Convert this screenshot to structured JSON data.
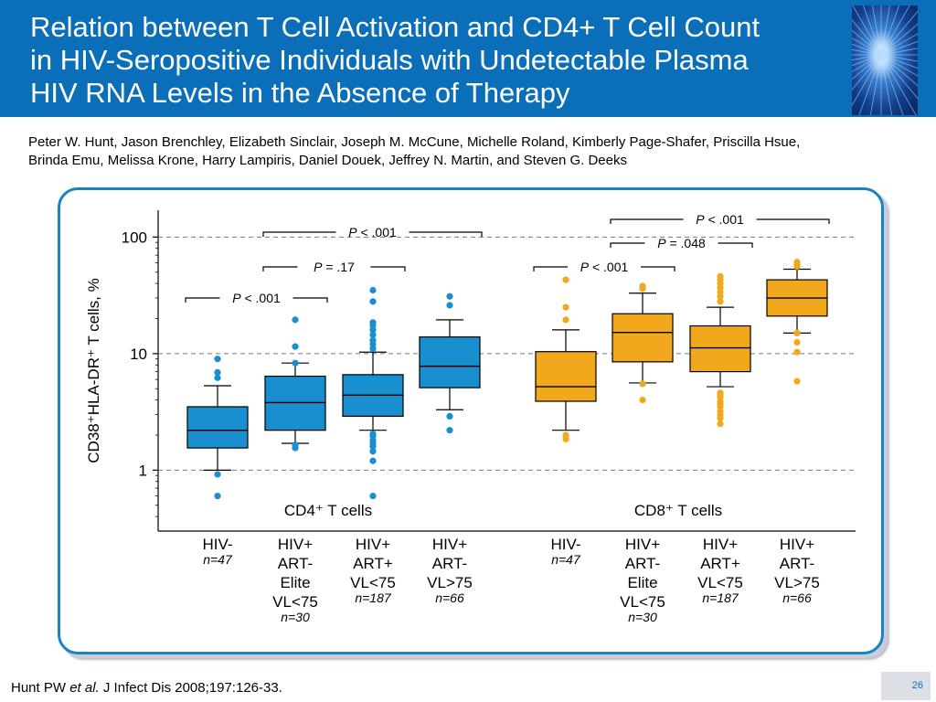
{
  "slide": {
    "title_lines": [
      "Relation between T Cell Activation and CD4+ T Cell Count",
      "in HIV-Seropositive Individuals with Undetectable Plasma",
      "HIV RNA Levels in the Absence of Therapy"
    ],
    "authors_lines": [
      "Peter W. Hunt, Jason Brenchley, Elizabeth Sinclair, Joseph M. McCune, Michelle Roland, Kimberly Page-Shafer, Priscilla Hsue,",
      "Brinda Emu, Melissa Krone, Harry Lampiris, Daniel Douek, Jeffrey N. Martin, and Steven G. Deeks"
    ],
    "citation": {
      "prefix": "Hunt PW ",
      "etal": "et al.",
      "rest": " J Infect Dis 2008;197:126-33."
    },
    "page_number": "26",
    "colors": {
      "header": "#0a6fb8",
      "cd4": "#1a8fcf",
      "cd8": "#f2a81d",
      "frame": "#1b82c6"
    }
  },
  "chart_data": {
    "type": "box",
    "scale": "log",
    "ylabel": "CD38⁺HLA-DR⁺ T cells, %",
    "ylim": [
      0.3,
      170
    ],
    "yticks": [
      1,
      10,
      100
    ],
    "ytick_labels": [
      "1",
      "10",
      "100"
    ],
    "gridlines": [
      1,
      10,
      100
    ],
    "panels": [
      {
        "label": "CD4⁺ T cells",
        "color": "#1a8fcf",
        "groups": [
          {
            "label_lines": [
              "HIV-"
            ],
            "n": "n=47",
            "q1": 1.55,
            "median": 2.2,
            "q3": 3.5,
            "whisker_low": 1.0,
            "whisker_high": 5.3,
            "outliers": [
              0.92,
              0.6,
              6.2,
              6.9,
              9.0
            ]
          },
          {
            "label_lines": [
              "HIV+",
              "ART-",
              "Elite",
              "VL<75"
            ],
            "n": "n=30",
            "q1": 2.2,
            "median": 3.8,
            "q3": 6.4,
            "whisker_low": 1.7,
            "whisker_high": 8.3,
            "outliers": [
              1.55,
              1.65,
              8.3,
              11.5,
              19.5
            ]
          },
          {
            "label_lines": [
              "HIV+",
              "ART+",
              "VL<75"
            ],
            "n": "n=187",
            "q1": 2.9,
            "median": 4.4,
            "q3": 6.6,
            "whisker_low": 2.2,
            "whisker_high": 10.3,
            "outliers": [
              0.6,
              1.2,
              1.45,
              1.6,
              1.7,
              1.8,
              1.95,
              2.05,
              11,
              12,
              13,
              14.5,
              16,
              17.5,
              18.5,
              28,
              35
            ]
          },
          {
            "label_lines": [
              "HIV+",
              "ART-",
              "VL>75"
            ],
            "n": "n=66",
            "q1": 5.1,
            "median": 7.8,
            "q3": 13.9,
            "whisker_low": 3.3,
            "whisker_high": 19.5,
            "outliers": [
              2.2,
              2.9,
              26,
              31
            ]
          }
        ],
        "annotations": [
          {
            "text": "P < .001",
            "from": 0,
            "to": 1
          },
          {
            "text": "P = .17",
            "from": 1,
            "to": 2
          },
          {
            "text": "P < .001",
            "from": 1,
            "to": 3
          }
        ]
      },
      {
        "label": "CD8⁺ T cells",
        "color": "#f2a81d",
        "groups": [
          {
            "label_lines": [
              "HIV-"
            ],
            "n": "n=47",
            "q1": 3.9,
            "median": 5.2,
            "q3": 10.4,
            "whisker_low": 2.2,
            "whisker_high": 16,
            "outliers": [
              1.85,
              2.0,
              19.5,
              25,
              43
            ]
          },
          {
            "label_lines": [
              "HIV+",
              "ART-",
              "Elite",
              "VL<75"
            ],
            "n": "n=30",
            "q1": 8.5,
            "median": 15.2,
            "q3": 22,
            "whisker_low": 5.6,
            "whisker_high": 33,
            "outliers": [
              4.0,
              5.5,
              36,
              38
            ]
          },
          {
            "label_lines": [
              "HIV+",
              "ART+",
              "VL<75"
            ],
            "n": "n=187",
            "q1": 7.0,
            "median": 11.2,
            "q3": 17.3,
            "whisker_low": 5.2,
            "whisker_high": 25,
            "outliers": [
              2.5,
              2.8,
              3.0,
              3.2,
              3.5,
              3.7,
              3.9,
              4.2,
              4.4,
              4.6,
              28,
              31,
              34,
              37,
              40,
              43,
              46
            ]
          },
          {
            "label_lines": [
              "HIV+",
              "ART-",
              "VL>75"
            ],
            "n": "n=66",
            "q1": 21,
            "median": 30,
            "q3": 43,
            "whisker_low": 15,
            "whisker_high": 53,
            "outliers": [
              5.8,
              10.3,
              12.5,
              15,
              56,
              58,
              61
            ]
          }
        ],
        "annotations": [
          {
            "text": "P < .001",
            "from": 0,
            "to": 1
          },
          {
            "text": "P = .048",
            "from": 1,
            "to": 2
          },
          {
            "text": "P < .001",
            "from": 1,
            "to": 3
          }
        ]
      }
    ]
  }
}
